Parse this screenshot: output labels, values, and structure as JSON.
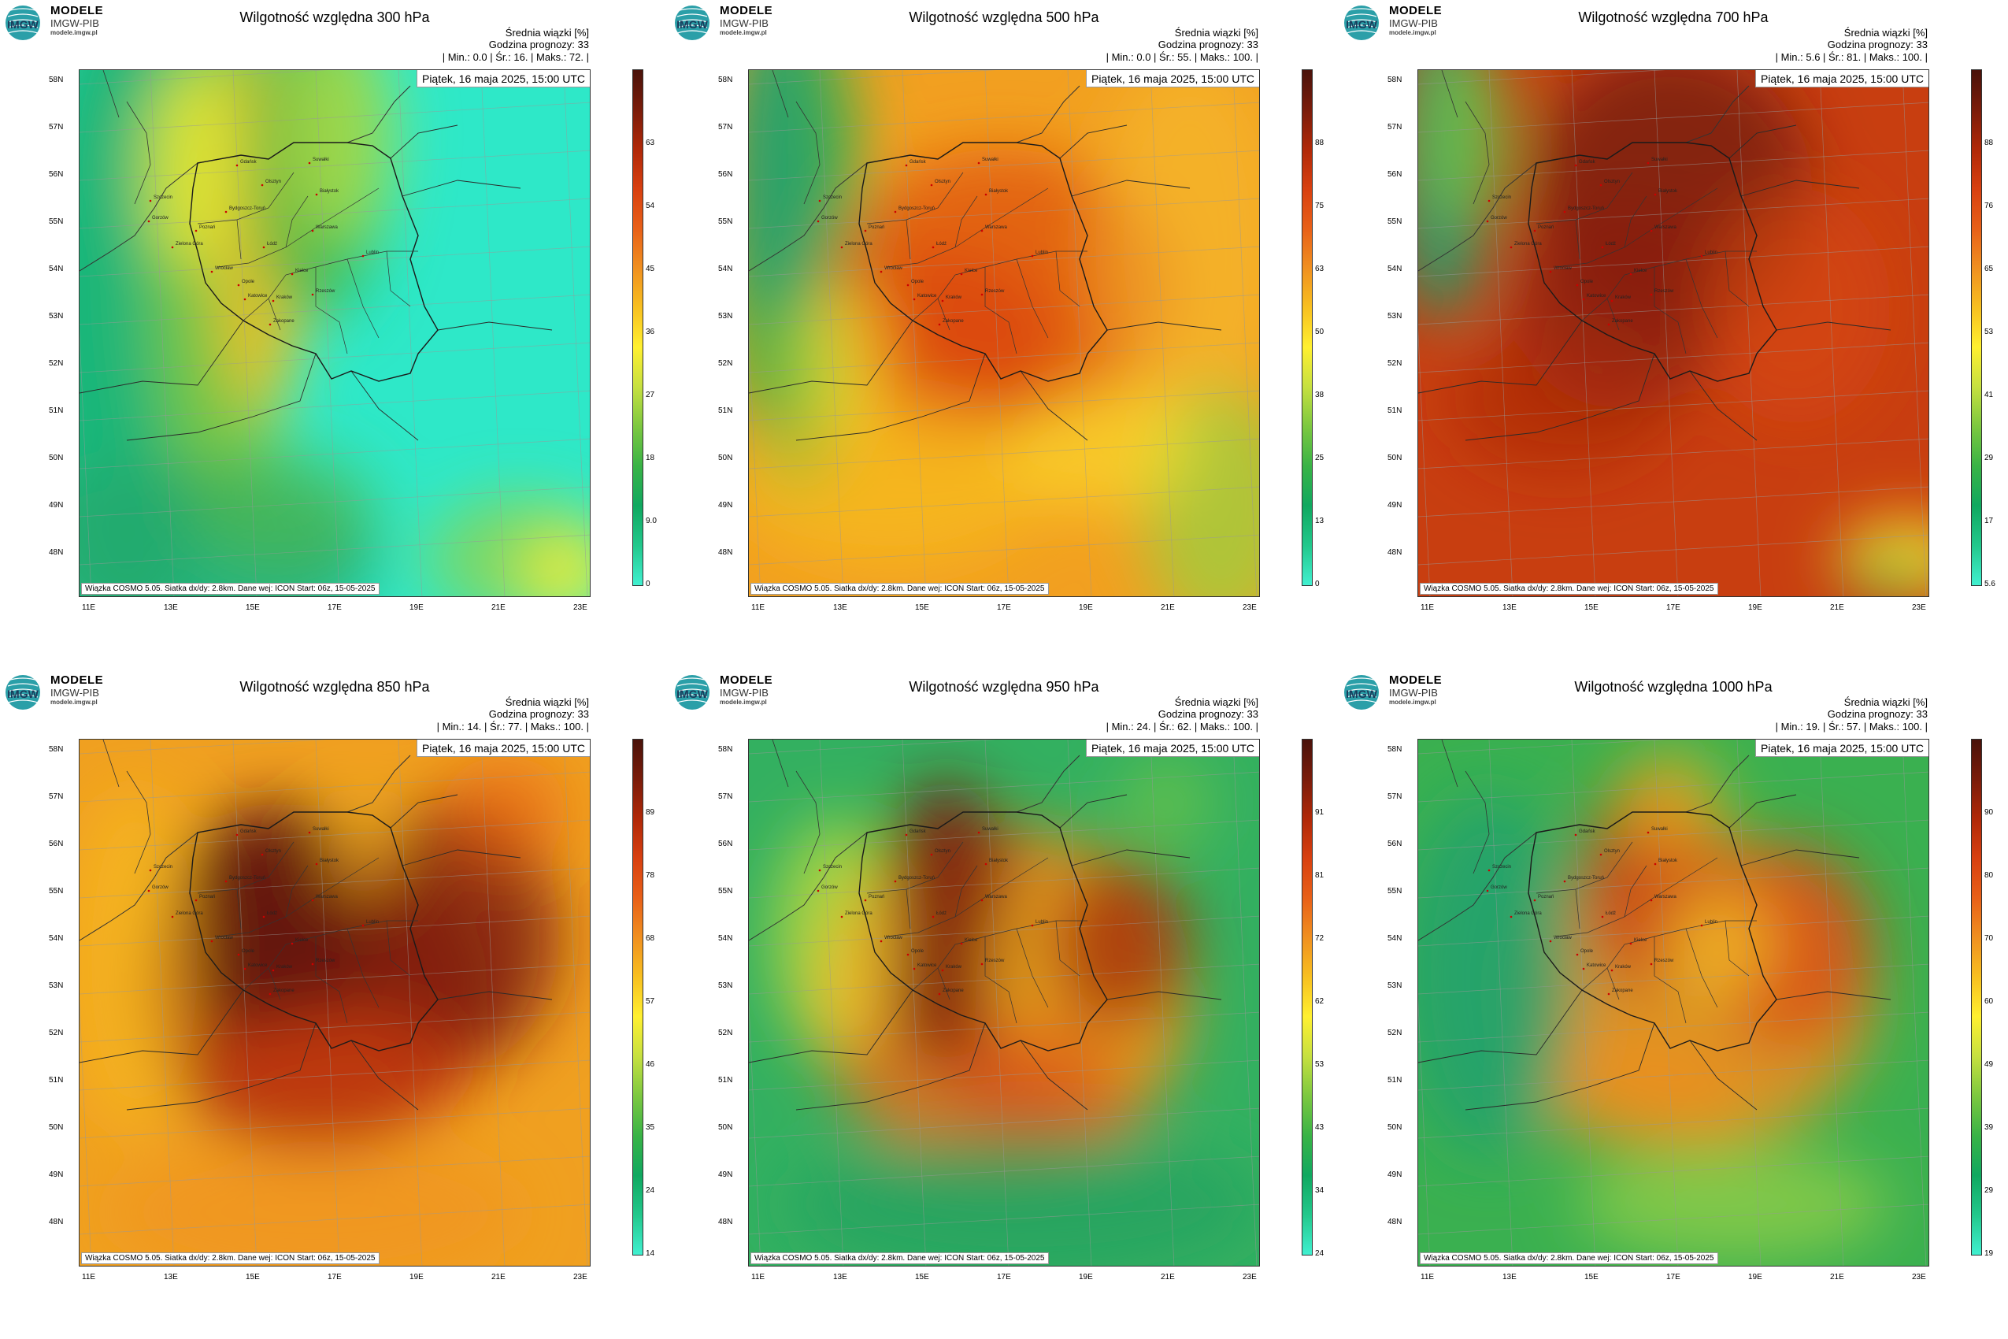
{
  "brand": {
    "name": "MODELE",
    "org": "IMGW-PIB",
    "url": "modele.imgw.pl",
    "logo_letters": "IMGW"
  },
  "common": {
    "mean_label": "Średnia wiązki [%]",
    "forecast_label": "Godzina prognozy: 33",
    "date": "Piątek, 16 maja 2025, 15:00 UTC",
    "footer": "Wiązka COSMO 5.05. Siatka dx/dy: 2.8km. Dane wej: ICON Start: 06z, 15-05-2025",
    "lat_labels": [
      "58N",
      "57N",
      "56N",
      "55N",
      "54N",
      "53N",
      "52N",
      "51N",
      "50N",
      "49N",
      "48N"
    ],
    "lon_labels": [
      "11E",
      "13E",
      "15E",
      "17E",
      "19E",
      "21E",
      "23E"
    ],
    "cities": [
      "Gdańsk",
      "Olsztyn",
      "Suwałki",
      "Szczecin",
      "Białystok",
      "Bydgoszcz-Toruń",
      "Gorzów",
      "Poznań",
      "Warszawa",
      "Zielona Góra",
      "Łódź",
      "Lublin",
      "Wrocław",
      "Kielce",
      "Opole",
      "Rzeszów",
      "Katowice",
      "Kraków",
      "Zakopane"
    ]
  },
  "panels": [
    {
      "title": "Wilgotność względna 300 hPa",
      "stats": "| Min.:     0.0 | Śr.:     16. | Maks.:     72. |",
      "cbar_ticks": [
        "63",
        "54",
        "45",
        "36",
        "27",
        "18",
        "9.0",
        "0"
      ],
      "palette": "p300"
    },
    {
      "title": "Wilgotność względna 500 hPa",
      "stats": "| Min.:     0.0 | Śr.:     55. | Maks.:     100. |",
      "cbar_ticks": [
        "88",
        "75",
        "63",
        "50",
        "38",
        "25",
        "13",
        "0"
      ],
      "palette": "p500"
    },
    {
      "title": "Wilgotność względna 700 hPa",
      "stats": "| Min.:     5.6 | Śr.:     81. | Maks.:     100. |",
      "cbar_ticks": [
        "88",
        "76",
        "65",
        "53",
        "41",
        "29",
        "17",
        "5.6"
      ],
      "palette": "p700"
    },
    {
      "title": "Wilgotność względna 850 hPa",
      "stats": "| Min.:     14. | Śr.:     77. | Maks.:     100. |",
      "cbar_ticks": [
        "89",
        "78",
        "68",
        "57",
        "46",
        "35",
        "24",
        "14"
      ],
      "palette": "p850"
    },
    {
      "title": "Wilgotność względna 950 hPa",
      "stats": "| Min.:     24. | Śr.:     62. | Maks.:     100. |",
      "cbar_ticks": [
        "91",
        "81",
        "72",
        "62",
        "53",
        "43",
        "34",
        "24"
      ],
      "palette": "p950"
    },
    {
      "title": "Wilgotność względna 1000 hPa",
      "stats": "| Min.:     19. | Śr.:     57. | Maks.:     100. |",
      "cbar_ticks": [
        "90",
        "80",
        "70",
        "60",
        "49",
        "39",
        "29",
        "19"
      ],
      "palette": "p1000"
    }
  ],
  "colors": {
    "scale": [
      "#41f0d0",
      "#22c88c",
      "#10a860",
      "#39b346",
      "#7cc840",
      "#c6e040",
      "#fff030",
      "#f8c020",
      "#f09020",
      "#e86018",
      "#d84010",
      "#b02808",
      "#7a1c0a",
      "#4a120a"
    ]
  }
}
